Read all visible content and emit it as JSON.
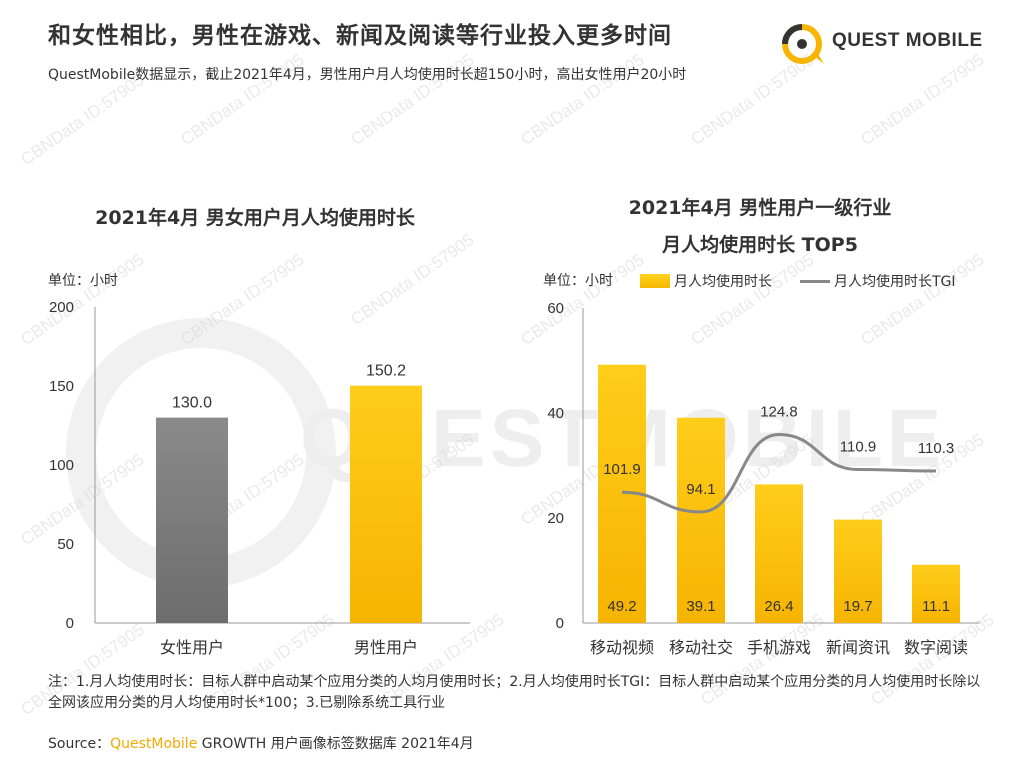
{
  "header": {
    "title": "和女性相比，男性在游戏、新闻及阅读等行业投入更多时间",
    "subtitle": "QuestMobile数据显示，截止2021年4月，男性用户月人均使用时长超150小时，高出女性用户20小时"
  },
  "logo": {
    "text": "QUEST MOBILE"
  },
  "watermark": {
    "small": "CBNData ID:57905",
    "big": "QUESTMOBILE"
  },
  "colors": {
    "accent": "#f7b500",
    "female_bar": "#7a7a7a",
    "line": "#888888"
  },
  "left_chart": {
    "title": "2021年4月 男女用户月人均使用时长",
    "unit": "单位：小时"
  },
  "right_chart": {
    "title_line1": "2021年4月 男性用户一级行业",
    "title_line2": "月人均使用时长 TOP5",
    "unit": "单位：小时",
    "legend_bar": "月人均使用时长",
    "legend_line": "月人均使用时长TGI"
  },
  "chart_data": [
    {
      "type": "bar",
      "title": "2021年4月 男女用户月人均使用时长",
      "categories": [
        "女性用户",
        "男性用户"
      ],
      "values": [
        130.0,
        150.2
      ],
      "value_labels": [
        "130.0",
        "150.2"
      ],
      "ylabel": "单位：小时",
      "ylim": [
        0,
        200
      ],
      "yticks": [
        0,
        50,
        100,
        150,
        200
      ]
    },
    {
      "type": "bar",
      "title": "2021年4月 男性用户一级行业 月人均使用时长 TOP5",
      "categories": [
        "移动视频",
        "移动社交",
        "手机游戏",
        "新闻资讯",
        "数字阅读"
      ],
      "ylabel": "单位：小时",
      "ylim": [
        0,
        60
      ],
      "yticks": [
        0,
        20,
        40,
        60
      ],
      "series": [
        {
          "name": "月人均使用时长",
          "kind": "bar",
          "values": [
            49.2,
            39.1,
            26.4,
            19.7,
            11.1
          ],
          "value_labels": [
            "49.2",
            "39.1",
            "26.4",
            "19.7",
            "11.1"
          ]
        },
        {
          "name": "月人均使用时长TGI",
          "kind": "line",
          "values": [
            101.9,
            94.1,
            124.8,
            110.9,
            110.3
          ],
          "value_labels": [
            "101.9",
            "94.1",
            "124.8",
            "110.9",
            "110.3"
          ]
        }
      ]
    }
  ],
  "footer": {
    "note": "注：1.月人均使用时长：目标人群中启动某个应用分类的人均月使用时长；2.月人均使用时长TGI：目标人群中启动某个应用分类的月人均使用时长除以全网该应用分类的月人均使用时长*100；3.已剔除系统工具行业",
    "source_prefix": "Source：",
    "source_brand": "QuestMobile",
    "source_rest": " GROWTH 用户画像标签数据库 2021年4月"
  }
}
